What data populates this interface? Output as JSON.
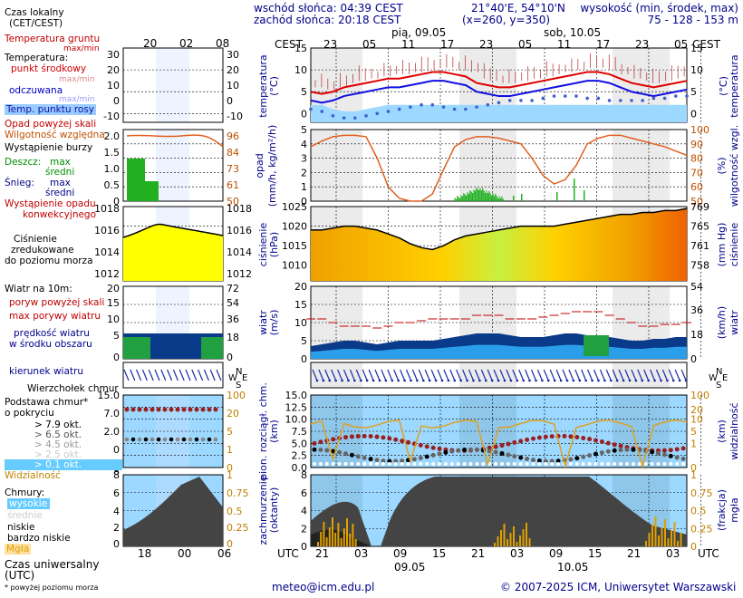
{
  "header": {
    "sunrise": "wschód słońca: 04:39 CEST",
    "sunset": "zachód słońca: 20:18 CEST",
    "coords": "21°40'E, 54°10'N",
    "grid": "(x=260,  y=350)",
    "height_title": "wysokość (min, środek, max)",
    "height_values": "75 - 128 - 153 m",
    "day1": "pią, 09.05",
    "day2": "sob, 10.05"
  },
  "legend": {
    "local_time": "Czas lokalny",
    "local_time2": "(CET/CEST)",
    "temp_ground": "Temperatura gruntu",
    "temp_ground_sub": "max/min",
    "temp": "Temperatura:",
    "temp_mid": "punkt środkowy",
    "temp_maxmin": "max/min",
    "temp_felt": "odczuwana",
    "temp_felt_maxmin": "max/min",
    "dew": "Temp. punktu rosy",
    "precip_above": "Opad powyżej skali",
    "humidity": "Wilgotność względna",
    "storm": "Wystąpienie burzy",
    "rain": "Deszcz:",
    "rain_max": "max",
    "rain_avg": "średni",
    "snow": "Śnieg:",
    "snow_max": "max",
    "snow_avg": "średni",
    "conv1": "Wystąpienie opadu",
    "conv2": "konwekcyjnego",
    "press1": "Ciśnienie",
    "press2": "zredukowane",
    "press3": "do poziomu morza",
    "wind": "Wiatr na 10m:",
    "gust_above": "poryw powyżej skali",
    "gust_max": "max porywy wiatru",
    "wind_avg1": "prędkość wiatru",
    "wind_avg2": "w środku obszaru",
    "wind_dir": "kierunek wiatru",
    "cloud_base1": "Podstawa chmur*",
    "cloud_base2": "o pokryciu",
    "cb_79": "> 7.9 okt.",
    "cb_65": "> 6.5 okt.",
    "cb_45": "> 4.5 okt.",
    "cb_25": "> 2.5 okt.",
    "cb_01": "> 0.1 okt.",
    "cumulonimbus": "Wierzchołek chmur",
    "visibility": "Widzialność",
    "clouds": "Chmury:",
    "cl_high": "wysokie",
    "cl_mid": "średnie",
    "cl_low": "niskie",
    "cl_vlow": "bardzo niskie",
    "fog": "Mgła",
    "utc": "Czas uniwersalny (UTC)",
    "footnote": "* powyżej poziomu morza"
  },
  "footer": {
    "email": "meteo@icm.edu.pl",
    "copyright": "© 2007-2025 ICM, Uniwersytet Warszawski"
  },
  "axis_labels": {
    "cest": "CEST",
    "utc": "UTC",
    "temperature": "temperatura",
    "temp_unit": "(°C)",
    "precip": "opad",
    "precip_unit": "(mm/h, kg/m²/h)",
    "humidity": "wilgotność wzgl.",
    "humidity_unit": "(%)",
    "pressure": "ciśnienie",
    "pressure_unit": "(hPa)",
    "pressure_unit2": "(mm Hg)",
    "wind": "wiatr",
    "wind_unit": "(m/s)",
    "wind_unit2": "(km/h)",
    "cloud_base": "pion. rozciągł. chm.",
    "cloud_base_unit": "(km)",
    "visibility": "widzialność",
    "visibility_unit": "(km)",
    "cloud_cover": "zachmurzenie",
    "cloud_cover_unit": "(oktanty)",
    "fog": "mgła",
    "fog_unit": "(frakcja)",
    "date1": "09.05",
    "date2": "10.05"
  },
  "chart_data": {
    "type": "line",
    "cest_ticks": [
      "23",
      "05",
      "11",
      "17",
      "23",
      "05",
      "11",
      "17",
      "23",
      "05"
    ],
    "utc_ticks": [
      "21",
      "03",
      "09",
      "15",
      "21",
      "03",
      "09",
      "15",
      "21",
      "03"
    ],
    "mini_cest_ticks": [
      "20",
      "02",
      "08"
    ],
    "mini_utc_ticks": [
      "18",
      "00",
      "06"
    ],
    "temperature": {
      "ylim": [
        -2,
        15
      ],
      "ticks_left": [
        "15",
        "10",
        "5",
        "0"
      ],
      "ticks_right": [
        "15",
        "10",
        "5",
        "0"
      ],
      "mid": [
        5,
        4.5,
        5,
        6,
        6.5,
        7,
        7.5,
        8,
        8,
        8.5,
        9,
        9.5,
        9.5,
        9,
        8.5,
        7,
        6.5,
        6,
        6,
        6.5,
        7,
        7.5,
        8,
        8.5,
        9,
        9.5,
        9.5,
        9,
        8,
        7,
        6.5,
        6,
        6.5,
        7,
        7.5
      ],
      "felt": [
        3,
        2.5,
        3,
        4,
        4.5,
        5,
        5.5,
        6,
        6,
        6.5,
        7,
        7.5,
        7.5,
        7,
        6.5,
        5,
        4.5,
        4,
        4,
        4.5,
        5,
        5.5,
        6,
        6.5,
        7,
        7.5,
        7.5,
        7,
        6,
        5,
        4.5,
        4,
        4.5,
        5,
        5.5
      ],
      "dew": [
        1,
        0.5,
        -0.5,
        -1,
        -1,
        -0.5,
        0,
        0.5,
        1,
        1.5,
        2,
        2,
        1.5,
        1,
        1,
        1.5,
        2,
        2.5,
        3,
        3,
        3,
        3.5,
        4,
        4,
        4,
        3.5,
        3.5,
        3,
        3,
        3,
        3,
        3.5,
        3.5,
        4,
        4
      ]
    },
    "precipitation": {
      "ylim": [
        0,
        5
      ],
      "ticks_left": [
        "5",
        "4",
        "3",
        "2",
        "1",
        "0"
      ],
      "ticks_right": [
        "100",
        "90",
        "80",
        "70",
        "60",
        "50"
      ],
      "humidity": [
        88,
        92,
        95,
        96,
        96,
        95,
        80,
        60,
        52,
        50,
        50,
        55,
        72,
        88,
        93,
        95,
        95,
        94,
        92,
        90,
        80,
        68,
        62,
        65,
        75,
        90,
        94,
        96,
        96,
        94,
        92,
        90,
        88,
        85,
        82
      ]
    },
    "pressure": {
      "ylim": [
        1006,
        1025
      ],
      "ticks_left": [
        "1025",
        "1020",
        "1015",
        "1010"
      ],
      "ticks_right": [
        "769",
        "765",
        "761",
        "758"
      ],
      "values": [
        1019,
        1019,
        1019.5,
        1020,
        1020,
        1019.5,
        1019,
        1018,
        1017,
        1015.5,
        1014.5,
        1014,
        1015,
        1016.5,
        1017.5,
        1018,
        1018.5,
        1019,
        1019.5,
        1020,
        1020,
        1020,
        1020,
        1020.5,
        1021,
        1021.5,
        1022,
        1022.5,
        1023,
        1023,
        1023.5,
        1023.5,
        1024,
        1024,
        1024.5
      ]
    },
    "wind": {
      "ylim": [
        0,
        20
      ],
      "ticks_left": [
        "20",
        "15",
        "10",
        "5",
        "0"
      ],
      "ticks_right": [
        "54",
        "36",
        "18",
        "0"
      ],
      "speed": [
        3.5,
        4,
        4.5,
        5,
        5,
        4.5,
        4,
        4.5,
        5,
        5,
        5,
        5,
        5.5,
        6,
        6.5,
        7,
        7,
        7,
        6.5,
        6,
        6,
        6,
        6.5,
        7,
        7,
        6.5,
        6,
        6,
        5.5,
        5,
        5,
        5.5,
        5.5,
        6,
        6
      ],
      "gust": [
        11,
        11,
        10,
        9,
        9,
        9,
        8.5,
        9,
        10,
        10,
        10.5,
        11,
        11,
        11,
        11,
        12,
        12,
        12,
        11,
        11,
        11,
        11.5,
        12,
        12.5,
        13,
        13,
        13,
        12,
        11,
        10,
        9,
        9,
        9.5,
        9.5,
        10
      ]
    },
    "cloudbase": {
      "ylim": [
        0,
        15
      ],
      "ticks_left": [
        "15.0",
        "12.5",
        "10.0",
        "7.5",
        "5.0",
        "2.5",
        "0.0"
      ],
      "ticks_right": [
        "100",
        "20",
        "10",
        "5",
        "1",
        "0"
      ]
    },
    "clouds": {
      "ylim": [
        0,
        8
      ],
      "ticks_left": [
        "8",
        "6",
        "4",
        "2",
        "0"
      ],
      "ticks_right": [
        "1",
        "0.75",
        "0.5",
        "0.25",
        "0"
      ]
    }
  }
}
